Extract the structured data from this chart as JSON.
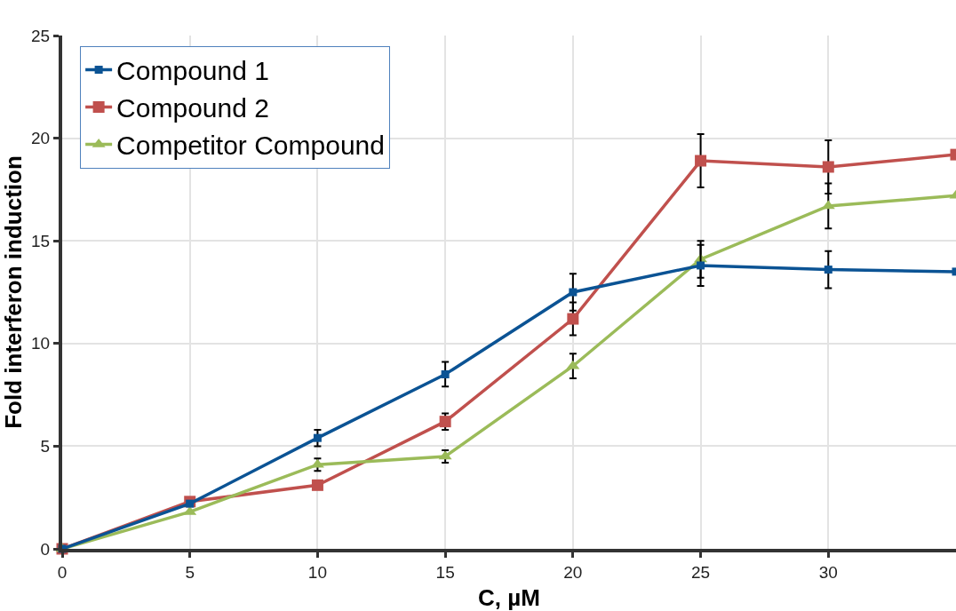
{
  "chart_data": {
    "type": "line",
    "xlabel": "C, µM",
    "ylabel": "Fold interferon induction",
    "x": [
      0,
      5,
      10,
      15,
      20,
      25,
      30,
      35
    ],
    "xlim": [
      0,
      35
    ],
    "xticks": [
      0,
      5,
      10,
      15,
      20,
      25,
      30
    ],
    "ylim": [
      0,
      25
    ],
    "yticks": [
      0,
      5,
      10,
      15,
      20,
      25
    ],
    "grid": true,
    "legend": "top left",
    "series": [
      {
        "name": "Compound 1",
        "color": "#0b5394",
        "marker": "square",
        "values": [
          0,
          2.2,
          5.4,
          8.5,
          12.5,
          13.8,
          13.6,
          13.5
        ],
        "errors": [
          null,
          null,
          0.4,
          0.6,
          0.9,
          1.0,
          0.9,
          null
        ]
      },
      {
        "name": "Compound 2",
        "color": "#c0504d",
        "marker": "square",
        "values": [
          0,
          2.3,
          3.1,
          6.2,
          11.2,
          18.9,
          18.6,
          19.2
        ],
        "errors": [
          null,
          null,
          null,
          0.4,
          0.8,
          1.3,
          1.3,
          null
        ]
      },
      {
        "name": "Competitor Compound",
        "color": "#9bbb59",
        "marker": "triangle",
        "values": [
          0,
          1.8,
          4.1,
          4.5,
          8.9,
          14.1,
          16.7,
          17.2
        ],
        "errors": [
          null,
          null,
          0.3,
          0.3,
          0.6,
          0.9,
          1.1,
          null
        ]
      }
    ]
  }
}
